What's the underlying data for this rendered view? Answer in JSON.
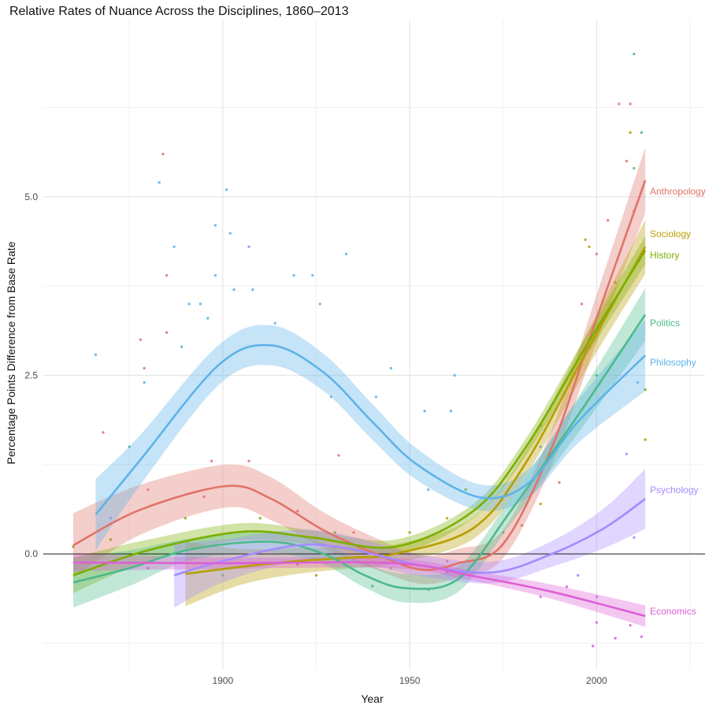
{
  "chart_data": {
    "type": "line",
    "title": "Relative Rates of Nuance Across the Disciplines, 1860–2013",
    "xlabel": "Year",
    "ylabel": "Percentage Points Difference from Base Rate",
    "xlim": [
      1852,
      2029
    ],
    "ylim": [
      -1.62,
      7.48
    ],
    "x_ticks": [
      {
        "value": 1900,
        "label": "1900"
      },
      {
        "value": 1950,
        "label": "1950"
      },
      {
        "value": 2000,
        "label": "2000"
      }
    ],
    "x_minor": [
      1875,
      1925,
      1975,
      2025
    ],
    "y_ticks": [
      {
        "value": 0,
        "label": "0.0"
      },
      {
        "value": 2.5,
        "label": "2.5"
      },
      {
        "value": 5,
        "label": "5.0"
      }
    ],
    "y_minor": [
      -1.25,
      1.25,
      3.75,
      6.25
    ],
    "grid": true,
    "reference_line": 0,
    "legend": "direct labels at right end of lines",
    "series": [
      {
        "name": "Anthropology",
        "color": "#E0736A",
        "smooth": [
          [
            1860,
            0.12,
            0.45
          ],
          [
            1878,
            0.62,
            0.35
          ],
          [
            1901,
            0.95,
            0.3
          ],
          [
            1913,
            0.77,
            0.3
          ],
          [
            1927,
            0.33,
            0.25
          ],
          [
            1941,
            0.0,
            0.22
          ],
          [
            1953,
            -0.22,
            0.2
          ],
          [
            1963,
            -0.13,
            0.2
          ],
          [
            1975,
            0.14,
            0.2
          ],
          [
            1988,
            1.49,
            0.25
          ],
          [
            2000,
            3.3,
            0.33
          ],
          [
            2013,
            5.23,
            0.46
          ]
        ],
        "points": [
          [
            1884,
            5.6
          ],
          [
            1885,
            3.9
          ],
          [
            1885,
            3.1
          ],
          [
            1878,
            3.0
          ],
          [
            1879,
            2.6
          ],
          [
            2006,
            6.3
          ],
          [
            2009,
            6.3
          ],
          [
            2008,
            5.5
          ],
          [
            2003,
            4.67
          ],
          [
            2000,
            4.2
          ],
          [
            1996,
            3.5
          ],
          [
            1868,
            1.7
          ],
          [
            1897,
            1.3
          ],
          [
            1907,
            1.3
          ],
          [
            1931,
            1.38
          ],
          [
            1880,
            0.9
          ],
          [
            1895,
            0.8
          ],
          [
            1920,
            0.6
          ],
          [
            1935,
            0.3
          ],
          [
            1960,
            -0.1
          ],
          [
            1980,
            0.4
          ],
          [
            1990,
            1.0
          ]
        ]
      },
      {
        "name": "Sociology",
        "color": "#B79F00",
        "smooth": [
          [
            1890,
            -0.28,
            0.45
          ],
          [
            1905,
            -0.18,
            0.25
          ],
          [
            1920,
            -0.1,
            0.18
          ],
          [
            1935,
            -0.05,
            0.15
          ],
          [
            1946,
            0.0,
            0.13
          ],
          [
            1967,
            0.36,
            0.15
          ],
          [
            1981,
            1.27,
            0.18
          ],
          [
            1998,
            2.9,
            0.25
          ],
          [
            2013,
            4.3,
            0.38
          ]
        ],
        "points": [
          [
            1997,
            4.4
          ],
          [
            1998,
            4.3
          ],
          [
            2009,
            5.9
          ],
          [
            2013,
            1.6
          ],
          [
            1925,
            -0.3
          ],
          [
            1945,
            -0.2
          ],
          [
            1960,
            0.5
          ],
          [
            1985,
            0.7
          ],
          [
            2010,
            4.8
          ]
        ]
      },
      {
        "name": "History",
        "color": "#7CAE00",
        "smooth": [
          [
            1860,
            -0.3,
            0.25
          ],
          [
            1880,
            0.05,
            0.15
          ],
          [
            1905,
            0.31,
            0.12
          ],
          [
            1924,
            0.23,
            0.1
          ],
          [
            1946,
            0.1,
            0.1
          ],
          [
            1967,
            0.6,
            0.1
          ],
          [
            1981,
            1.49,
            0.12
          ],
          [
            1998,
            2.98,
            0.15
          ],
          [
            2013,
            4.25,
            0.2
          ]
        ],
        "points": [
          [
            2013,
            2.3
          ],
          [
            1870,
            0.2
          ],
          [
            1890,
            0.5
          ],
          [
            1910,
            0.5
          ],
          [
            1930,
            0.3
          ],
          [
            1950,
            0.3
          ],
          [
            1965,
            0.9
          ],
          [
            1985,
            1.8
          ],
          [
            2005,
            3.8
          ],
          [
            1860,
            0.1
          ]
        ]
      },
      {
        "name": "Politics",
        "color": "#4DB98B",
        "smooth": [
          [
            1860,
            -0.4,
            0.35
          ],
          [
            1875,
            -0.2,
            0.25
          ],
          [
            1892,
            0.07,
            0.15
          ],
          [
            1913,
            0.17,
            0.15
          ],
          [
            1927,
            0.0,
            0.15
          ],
          [
            1938,
            -0.3,
            0.17
          ],
          [
            1949,
            -0.48,
            0.2
          ],
          [
            1963,
            -0.35,
            0.18
          ],
          [
            1977,
            0.6,
            0.18
          ],
          [
            1995,
            1.94,
            0.25
          ],
          [
            2013,
            3.35,
            0.37
          ]
        ],
        "points": [
          [
            2010,
            7.0
          ],
          [
            2012,
            5.9
          ],
          [
            2010,
            5.4
          ],
          [
            1875,
            1.5
          ],
          [
            1900,
            -0.3
          ],
          [
            1940,
            -0.45
          ],
          [
            1955,
            -0.5
          ],
          [
            1975,
            0.3
          ],
          [
            2000,
            2.5
          ]
        ]
      },
      {
        "name": "Philosophy",
        "color": "#5DB3E8",
        "smooth": [
          [
            1866,
            0.55,
            0.5
          ],
          [
            1878,
            1.32,
            0.35
          ],
          [
            1899,
            2.65,
            0.28
          ],
          [
            1913,
            2.92,
            0.28
          ],
          [
            1927,
            2.54,
            0.26
          ],
          [
            1940,
            1.85,
            0.25
          ],
          [
            1952,
            1.25,
            0.22
          ],
          [
            1969,
            0.79,
            0.18
          ],
          [
            1982,
            1.0,
            0.2
          ],
          [
            1995,
            1.85,
            0.3
          ],
          [
            2013,
            2.78,
            0.5
          ]
        ],
        "points": [
          [
            1866,
            2.79
          ],
          [
            1883,
            5.2
          ],
          [
            1901,
            5.1
          ],
          [
            1898,
            4.6
          ],
          [
            1902,
            4.49
          ],
          [
            1933,
            4.2
          ],
          [
            1887,
            4.3
          ],
          [
            1891,
            3.5
          ],
          [
            1894,
            3.5
          ],
          [
            1903,
            3.7
          ],
          [
            1908,
            3.7
          ],
          [
            1919,
            3.9
          ],
          [
            1924,
            3.9
          ],
          [
            1926,
            3.5
          ],
          [
            1898,
            3.9
          ],
          [
            1896,
            3.3
          ],
          [
            1879,
            2.4
          ],
          [
            1889,
            2.9
          ],
          [
            1945,
            2.6
          ],
          [
            1962,
            2.5
          ],
          [
            1961,
            2.0
          ],
          [
            1954,
            2.0
          ],
          [
            1941,
            2.2
          ],
          [
            1929,
            2.2
          ],
          [
            1914,
            3.23
          ],
          [
            2011,
            2.4
          ],
          [
            1870,
            0.5
          ],
          [
            1955,
            0.9
          ],
          [
            1985,
            1.5
          ]
        ]
      },
      {
        "name": "Psychology",
        "color": "#A58AFF",
        "smooth": [
          [
            1887,
            -0.3,
            0.45
          ],
          [
            1900,
            -0.1,
            0.3
          ],
          [
            1920,
            0.12,
            0.22
          ],
          [
            1934,
            0.07,
            0.18
          ],
          [
            1952,
            -0.15,
            0.15
          ],
          [
            1972,
            -0.26,
            0.15
          ],
          [
            1988,
            0.0,
            0.18
          ],
          [
            2002,
            0.36,
            0.28
          ],
          [
            2013,
            0.77,
            0.42
          ]
        ],
        "points": [
          [
            1907,
            4.3
          ],
          [
            2010,
            0.23
          ],
          [
            1995,
            -0.3
          ],
          [
            1960,
            -0.2
          ],
          [
            1930,
            0.0
          ],
          [
            2000,
            -0.6
          ],
          [
            2008,
            1.4
          ]
        ]
      },
      {
        "name": "Economics",
        "color": "#DD5FD3",
        "smooth": [
          [
            1860,
            -0.12,
            0.12
          ],
          [
            1900,
            -0.13,
            0.08
          ],
          [
            1946,
            -0.13,
            0.07
          ],
          [
            1967,
            -0.31,
            0.07
          ],
          [
            1988,
            -0.53,
            0.1
          ],
          [
            2013,
            -0.87,
            0.15
          ]
        ],
        "points": [
          [
            2000,
            -0.96
          ],
          [
            1999,
            -1.29
          ],
          [
            2005,
            -1.18
          ],
          [
            2012,
            -1.16
          ],
          [
            2009,
            -1.0
          ],
          [
            1992,
            -0.46
          ],
          [
            1880,
            -0.2
          ],
          [
            1920,
            -0.15
          ],
          [
            1960,
            -0.25
          ],
          [
            1985,
            -0.6
          ]
        ]
      }
    ]
  }
}
